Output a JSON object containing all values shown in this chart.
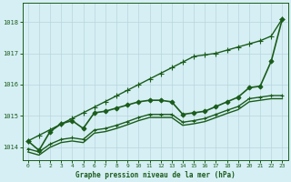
{
  "title": "Graphe pression niveau de la mer (hPa)",
  "background_color": "#d6eff5",
  "plot_bg_color": "#d6eff5",
  "grid_color": "#b8d4dc",
  "line_color": "#1a5c1a",
  "xlim": [
    -0.5,
    23.5
  ],
  "ylim": [
    1013.6,
    1018.6
  ],
  "yticks": [
    1014,
    1015,
    1016,
    1017,
    1018
  ],
  "xticks": [
    0,
    1,
    2,
    3,
    4,
    5,
    6,
    7,
    8,
    9,
    10,
    11,
    12,
    13,
    14,
    15,
    16,
    17,
    18,
    19,
    20,
    21,
    22,
    23
  ],
  "series": [
    {
      "x": [
        0,
        1,
        2,
        3,
        4,
        5,
        6,
        7,
        8,
        9,
        10,
        11,
        12,
        13,
        14,
        15,
        16,
        17,
        18,
        19,
        20,
        21,
        22,
        23
      ],
      "y": [
        1014.2,
        1014.38,
        1014.56,
        1014.74,
        1014.92,
        1015.1,
        1015.28,
        1015.46,
        1015.64,
        1015.82,
        1016.0,
        1016.18,
        1016.36,
        1016.54,
        1016.72,
        1016.9,
        1016.95,
        1017.0,
        1017.1,
        1017.2,
        1017.3,
        1017.4,
        1017.55,
        1018.1
      ],
      "marker": "+",
      "lw": 1.0,
      "ms": 4.0
    },
    {
      "x": [
        0,
        1,
        2,
        3,
        4,
        5,
        6,
        7,
        8,
        9,
        10,
        11,
        12,
        13,
        14,
        15,
        16,
        17,
        18,
        19,
        20,
        21,
        22,
        23
      ],
      "y": [
        1014.2,
        1013.9,
        1014.5,
        1014.75,
        1014.85,
        1014.6,
        1015.1,
        1015.15,
        1015.25,
        1015.35,
        1015.45,
        1015.5,
        1015.5,
        1015.45,
        1015.05,
        1015.1,
        1015.15,
        1015.3,
        1015.45,
        1015.6,
        1015.9,
        1015.95,
        1016.75,
        1018.1
      ],
      "marker": "D",
      "lw": 1.2,
      "ms": 2.5
    },
    {
      "x": [
        0,
        1,
        2,
        3,
        4,
        5,
        6,
        7,
        8,
        9,
        10,
        11,
        12,
        13,
        14,
        15,
        16,
        17,
        18,
        19,
        20,
        21,
        22,
        23
      ],
      "y": [
        1013.95,
        1013.85,
        1014.1,
        1014.25,
        1014.3,
        1014.25,
        1014.55,
        1014.6,
        1014.7,
        1014.82,
        1014.95,
        1015.05,
        1015.05,
        1015.05,
        1014.8,
        1014.85,
        1014.92,
        1015.05,
        1015.18,
        1015.3,
        1015.55,
        1015.6,
        1015.65,
        1015.65
      ],
      "marker": "+",
      "lw": 1.0,
      "ms": 3.5
    },
    {
      "x": [
        0,
        1,
        2,
        3,
        4,
        5,
        6,
        7,
        8,
        9,
        10,
        11,
        12,
        13,
        14,
        15,
        16,
        17,
        18,
        19,
        20,
        21,
        22,
        23
      ],
      "y": [
        1013.85,
        1013.75,
        1014.0,
        1014.15,
        1014.2,
        1014.15,
        1014.45,
        1014.5,
        1014.6,
        1014.72,
        1014.85,
        1014.95,
        1014.95,
        1014.95,
        1014.7,
        1014.75,
        1014.82,
        1014.95,
        1015.08,
        1015.2,
        1015.45,
        1015.5,
        1015.55,
        1015.55
      ],
      "marker": null,
      "lw": 1.0,
      "ms": 0
    }
  ]
}
